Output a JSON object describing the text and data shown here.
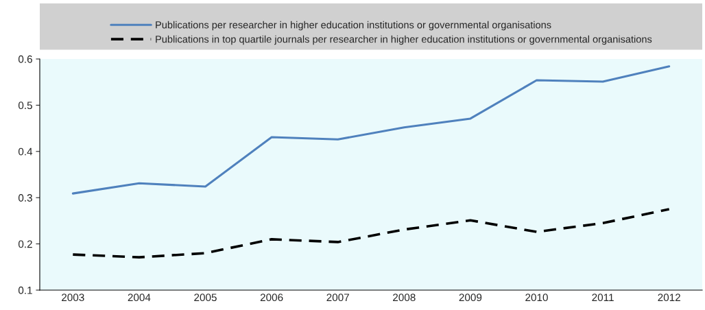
{
  "chart_data": {
    "type": "line",
    "categories": [
      "2003",
      "2004",
      "2005",
      "2006",
      "2007",
      "2008",
      "2009",
      "2010",
      "2011",
      "2012"
    ],
    "series": [
      {
        "name": "Publications per researcher in higher education institutions or governmental organisations",
        "color": "#4f81bd",
        "line_style": "solid",
        "values": [
          0.309,
          0.331,
          0.324,
          0.431,
          0.426,
          0.452,
          0.471,
          0.554,
          0.551,
          0.584
        ]
      },
      {
        "name": "Publications in top quartile journals per researcher in higher education institutions or governmental organisations",
        "color": "#000000",
        "line_style": "dashed",
        "values": [
          0.177,
          0.171,
          0.18,
          0.21,
          0.204,
          0.231,
          0.251,
          0.226,
          0.245,
          0.275
        ]
      }
    ],
    "ylim": [
      0.1,
      0.6
    ],
    "yticks": [
      0.1,
      0.2,
      0.3,
      0.4,
      0.5,
      0.6
    ],
    "grid": false,
    "legend": "top",
    "marker": "none"
  }
}
